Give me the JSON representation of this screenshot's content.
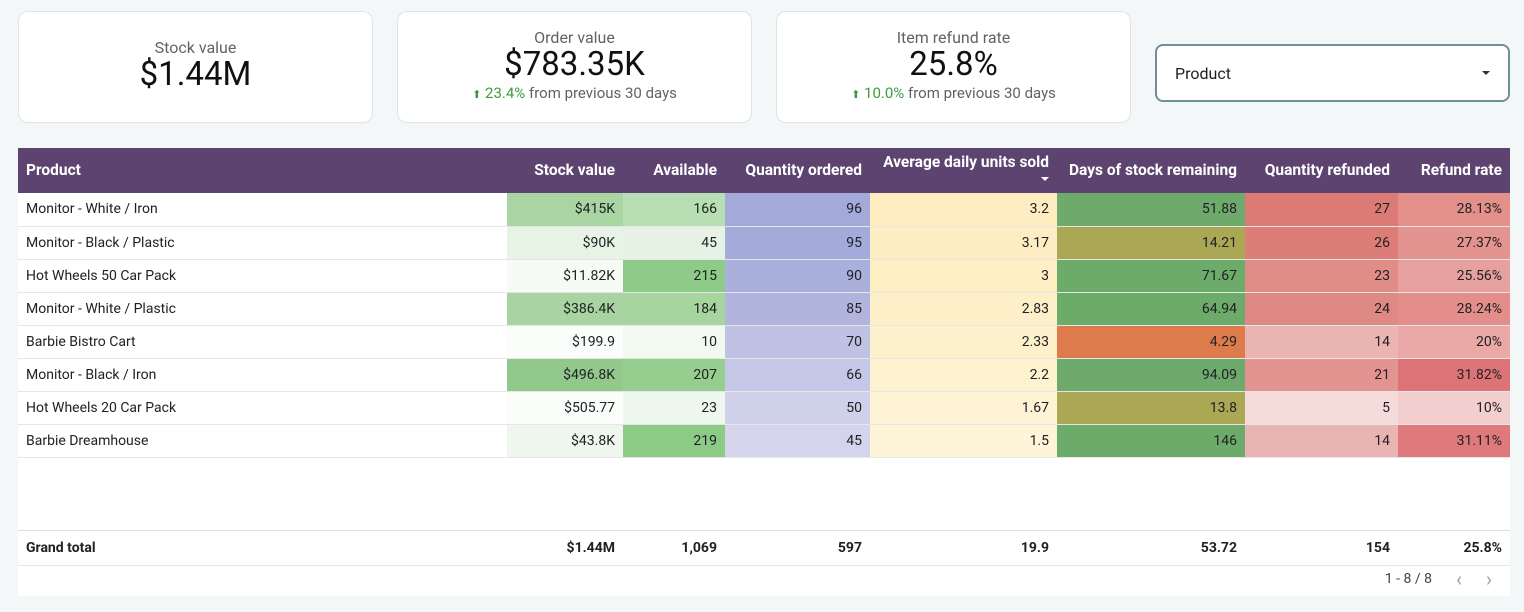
{
  "cards": [
    {
      "label": "Stock value",
      "value": "$1.44M"
    },
    {
      "label": "Order value",
      "value": "$783.35K",
      "delta_pct": "23.4%",
      "delta_text": "from previous 30 days"
    },
    {
      "label": "Item refund rate",
      "value": "25.8%",
      "delta_pct": "10.0%",
      "delta_text": "from previous 30 days"
    }
  ],
  "filter": {
    "label": "Product"
  },
  "table": {
    "columns": [
      "Product",
      "Stock value",
      "Available",
      "Quantity ordered",
      "Average daily units sold",
      "Days of stock remaining",
      "Quantity refunded",
      "Refund rate"
    ],
    "rows": [
      {
        "product": "Monitor - White / Iron",
        "stock_value": "$415K",
        "available": "166",
        "qty_ordered": "96",
        "avg_daily": "3.2",
        "days_stock": "51.88",
        "qty_refunded": "27",
        "refund_rate": "28.13%"
      },
      {
        "product": "Monitor - Black / Plastic",
        "stock_value": "$90K",
        "available": "45",
        "qty_ordered": "95",
        "avg_daily": "3.17",
        "days_stock": "14.21",
        "qty_refunded": "26",
        "refund_rate": "27.37%"
      },
      {
        "product": "Hot Wheels 50 Car Pack",
        "stock_value": "$11.82K",
        "available": "215",
        "qty_ordered": "90",
        "avg_daily": "3",
        "days_stock": "71.67",
        "qty_refunded": "23",
        "refund_rate": "25.56%"
      },
      {
        "product": "Monitor - White / Plastic",
        "stock_value": "$386.4K",
        "available": "184",
        "qty_ordered": "85",
        "avg_daily": "2.83",
        "days_stock": "64.94",
        "qty_refunded": "24",
        "refund_rate": "28.24%"
      },
      {
        "product": "Barbie Bistro Cart",
        "stock_value": "$199.9",
        "available": "10",
        "qty_ordered": "70",
        "avg_daily": "2.33",
        "days_stock": "4.29",
        "qty_refunded": "14",
        "refund_rate": "20%"
      },
      {
        "product": "Monitor - Black / Iron",
        "stock_value": "$496.8K",
        "available": "207",
        "qty_ordered": "66",
        "avg_daily": "2.2",
        "days_stock": "94.09",
        "qty_refunded": "21",
        "refund_rate": "31.82%"
      },
      {
        "product": "Hot Wheels 20 Car Pack",
        "stock_value": "$505.77",
        "available": "23",
        "qty_ordered": "50",
        "avg_daily": "1.67",
        "days_stock": "13.8",
        "qty_refunded": "5",
        "refund_rate": "10%"
      },
      {
        "product": "Barbie Dreamhouse",
        "stock_value": "$43.8K",
        "available": "219",
        "qty_ordered": "45",
        "avg_daily": "1.5",
        "days_stock": "146",
        "qty_refunded": "14",
        "refund_rate": "31.11%"
      }
    ],
    "cell_colors": [
      [
        "#a8d5a2",
        "#b8dfb3",
        "#a3a9d9",
        "#fdedc1",
        "#6daa6b",
        "#dc7a75",
        "#e38f8a"
      ],
      [
        "#e7f3e5",
        "#e6f3e4",
        "#a4aad9",
        "#fdedc2",
        "#aaa855",
        "#dd7d78",
        "#e49490"
      ],
      [
        "#f7fbf6",
        "#8fcb88",
        "#aab0dc",
        "#fdeec4",
        "#6dab6a",
        "#e08c87",
        "#e6a09d"
      ],
      [
        "#a8d4a2",
        "#a6d5a0",
        "#b1b5de",
        "#fdefc7",
        "#6dab6a",
        "#df8984",
        "#e38e8a"
      ],
      [
        "#fbfdfb",
        "#f1f9f0",
        "#bfc2e3",
        "#fdf1cc",
        "#de7b4d",
        "#e9b4b1",
        "#eaa8a6"
      ],
      [
        "#92c88b",
        "#96ce8f",
        "#c4c7e5",
        "#fdf2cf",
        "#6daa6b",
        "#e39490",
        "#dc7477"
      ],
      [
        "#fafdfa",
        "#eff8ee",
        "#cfd1ea",
        "#fef4d5",
        "#aaa855",
        "#f5dcdb",
        "#f2cfce"
      ],
      [
        "#eef6ed",
        "#8ccb86",
        "#d4d5ec",
        "#fef4d8",
        "#6dab6a",
        "#e9b4b1",
        "#de7a7b"
      ]
    ],
    "totals": {
      "label": "Grand total",
      "stock_value": "$1.44M",
      "available": "1,069",
      "qty_ordered": "597",
      "avg_daily": "19.9",
      "days_stock": "53.72",
      "qty_refunded": "154",
      "refund_rate": "25.8%"
    },
    "pagination": "1 - 8 / 8"
  }
}
